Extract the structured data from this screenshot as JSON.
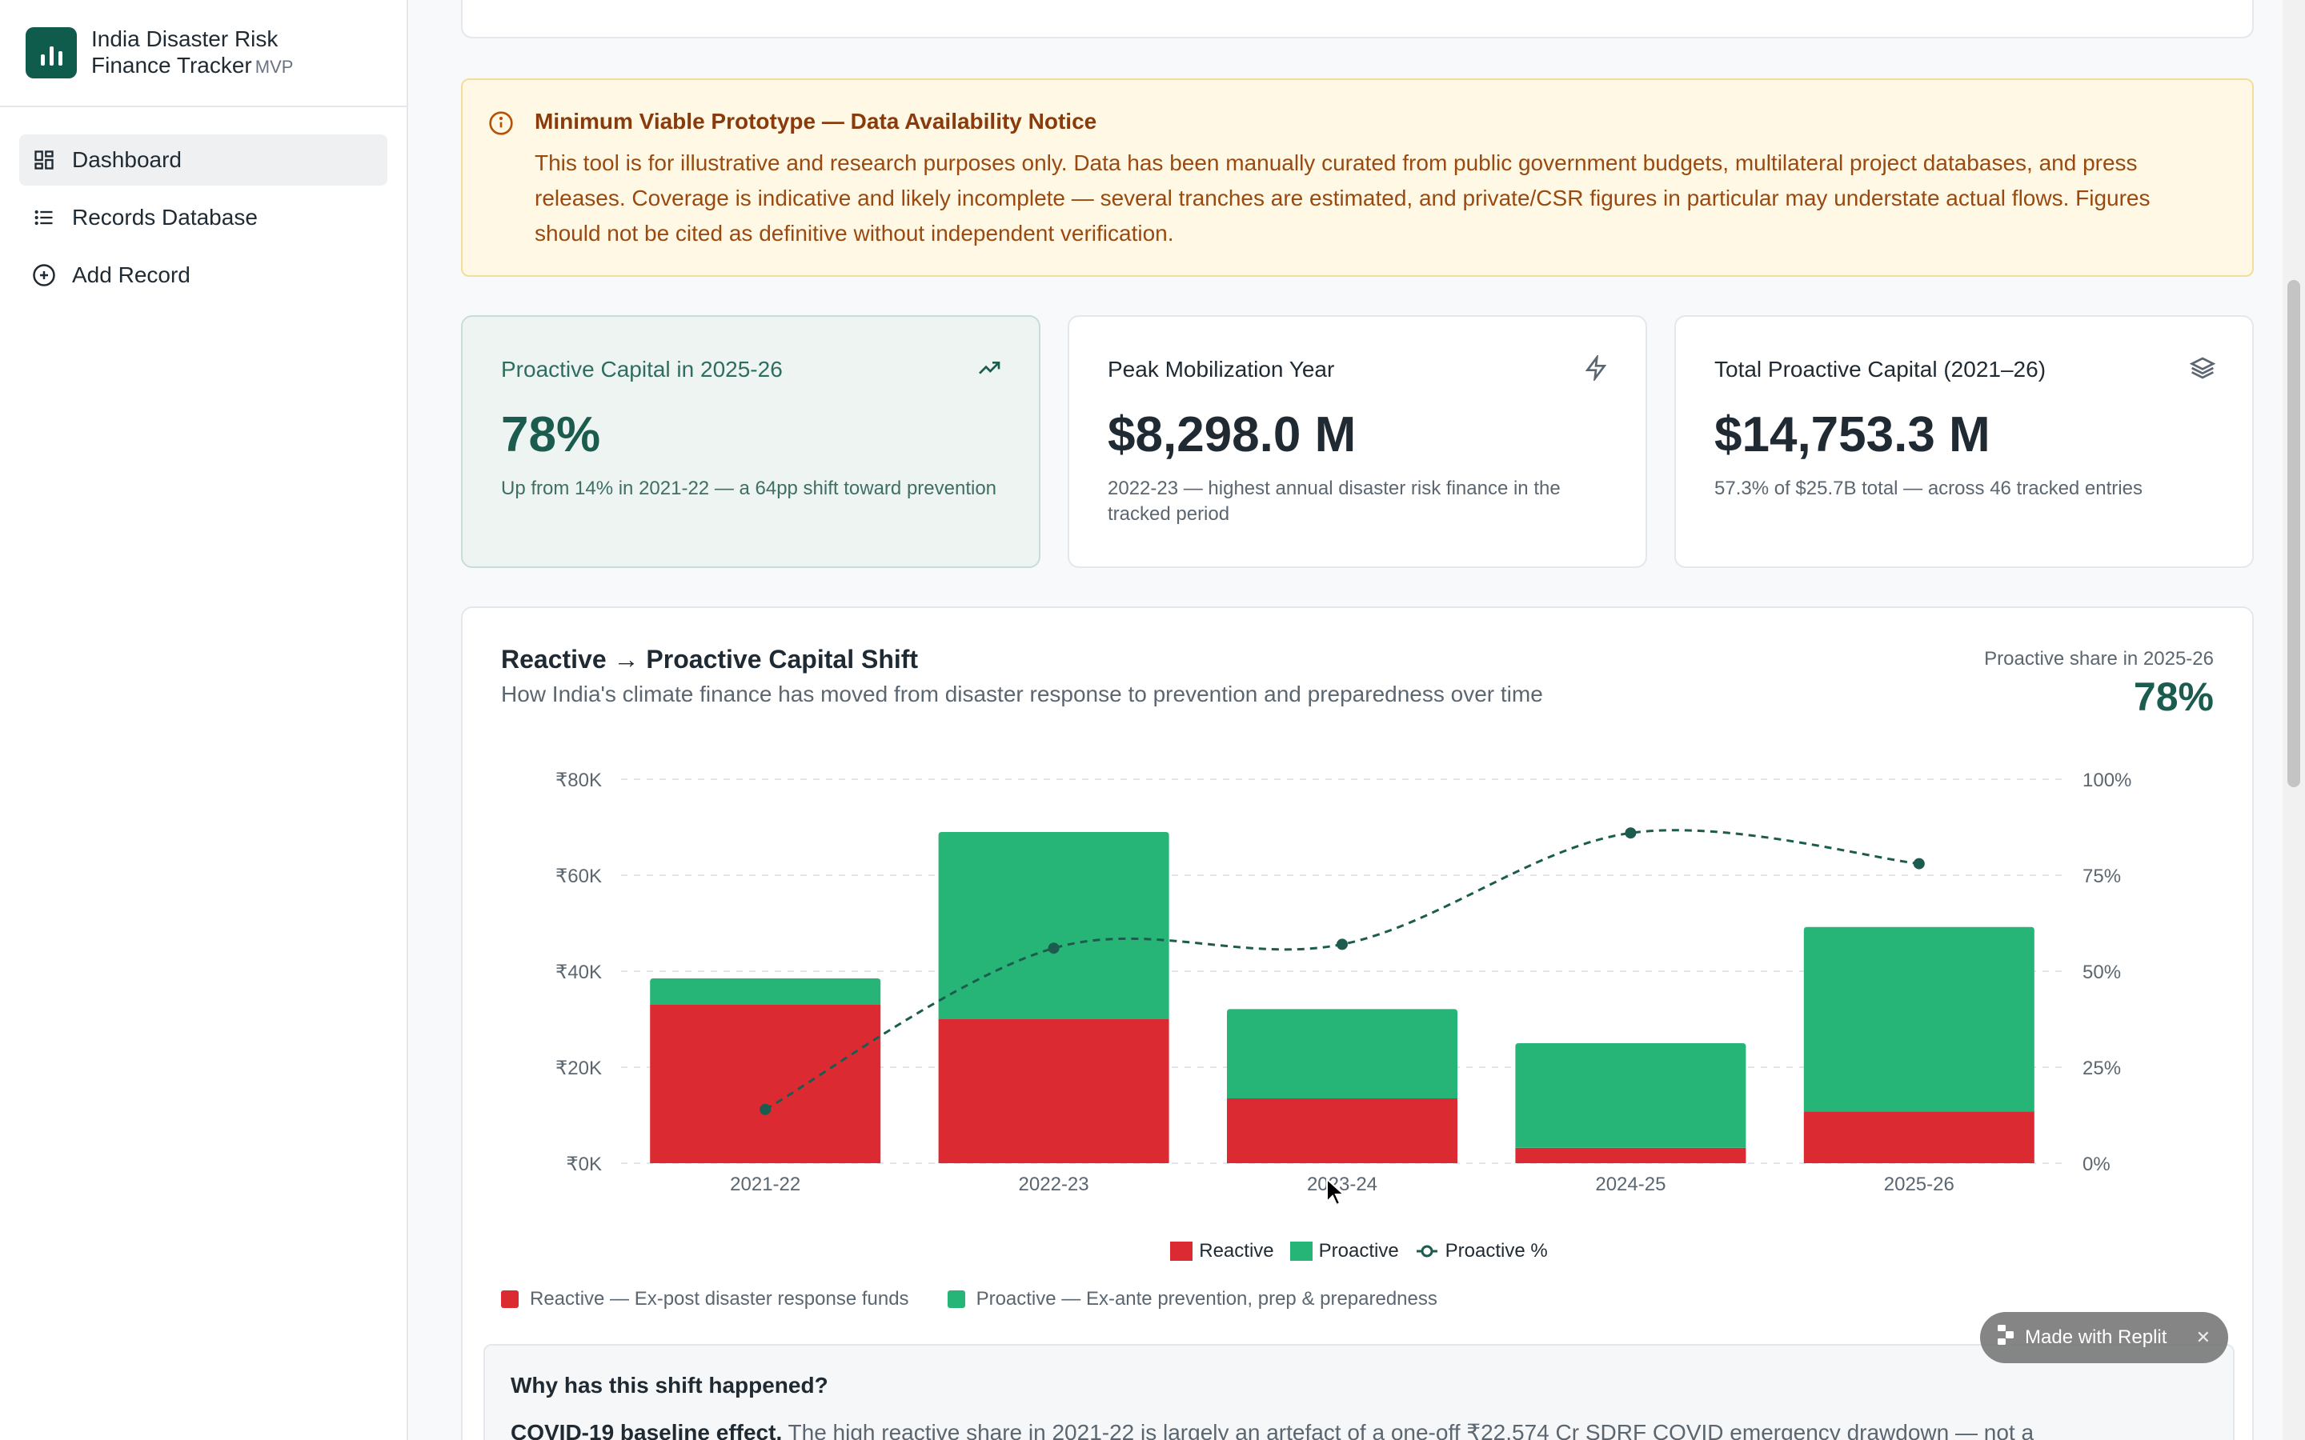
{
  "brand": {
    "title_line1": "India Disaster Risk",
    "title_line2": "Finance Tracker",
    "badge": "MVP"
  },
  "sidebar": {
    "items": [
      {
        "label": "Dashboard",
        "icon": "dashboard-grid-icon",
        "active": true
      },
      {
        "label": "Records Database",
        "icon": "list-icon",
        "active": false
      },
      {
        "label": "Add Record",
        "icon": "plus-circle-icon",
        "active": false
      }
    ]
  },
  "notice": {
    "title": "Minimum Viable Prototype — Data Availability Notice",
    "body": "This tool is for illustrative and research purposes only. Data has been manually curated from public government budgets, multilateral project databases, and press releases. Coverage is indicative and likely incomplete — several tranches are estimated, and private/CSR figures in particular may understate actual flows. Figures should not be cited as definitive without independent verification."
  },
  "kpis": [
    {
      "label": "Proactive Capital in 2025-26",
      "value": "78%",
      "sub": "Up from 14% in 2021-22 — a 64pp shift toward prevention",
      "icon": "trending-up-icon"
    },
    {
      "label": "Peak Mobilization Year",
      "value": "$8,298.0 M",
      "sub": "2022-23 — highest annual disaster risk finance in the tracked period",
      "icon": "lightning-icon"
    },
    {
      "label": "Total Proactive Capital (2021–26)",
      "value": "$14,753.3 M",
      "sub": "57.3% of $25.7B total — across 46 tracked entries",
      "icon": "layers-icon"
    }
  ],
  "chart": {
    "title": "Reactive → Proactive Capital Shift",
    "subtitle": "How India's climate finance has moved from disaster response to prevention and preparedness over time",
    "share_label": "Proactive share in 2025-26",
    "share_value": "78%",
    "legend": {
      "reactive": "Reactive",
      "proactive": "Proactive",
      "pct": "Proactive %"
    },
    "key": {
      "reactive": "Reactive — Ex-post disaster response funds",
      "proactive": "Proactive — Ex-ante prevention, prep & preparedness"
    }
  },
  "chart_data": {
    "type": "bar",
    "categories": [
      "2021-22",
      "2022-23",
      "2023-24",
      "2024-25",
      "2025-26"
    ],
    "series": [
      {
        "name": "Reactive",
        "values": [
          33000,
          30000,
          13500,
          3200,
          10800
        ],
        "color": "#dc2a33"
      },
      {
        "name": "Proactive",
        "values": [
          5500,
          39000,
          18600,
          21800,
          38400
        ],
        "color": "#27b577"
      },
      {
        "name": "Proactive %",
        "values": [
          14,
          56,
          57,
          86,
          78
        ],
        "color": "#1b5c4f"
      }
    ],
    "y_ticks": [
      "₹0K",
      "₹20K",
      "₹40K",
      "₹60K",
      "₹80K"
    ],
    "y2_ticks": [
      "0%",
      "25%",
      "50%",
      "75%",
      "100%"
    ],
    "ylim": [
      0,
      80000
    ],
    "y2lim": [
      0,
      100
    ],
    "grid": true,
    "legend_position": "bottom-center"
  },
  "why": {
    "title": "Why has this shift happened?",
    "lead": "COVID-19 baseline effect.",
    "body": "The high reactive share in 2021-22 is largely an artefact of a one-off ₹22,574 Cr SDRF COVID emergency drawdown — not a"
  },
  "replit": {
    "label": "Made with Replit"
  }
}
